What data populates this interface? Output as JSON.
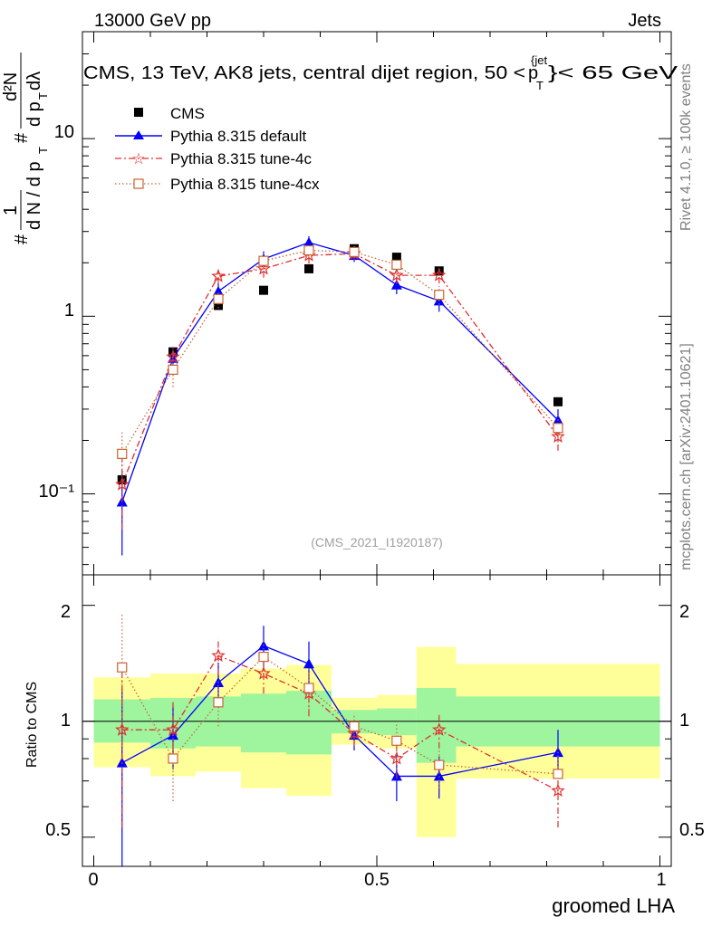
{
  "header": {
    "left": "13000 GeV pp",
    "right": "Jets",
    "side_label": "Rivet 4.1.0, ≥ 100k events",
    "side_url": "mcplots.cern.ch [arXiv:2401.10621]"
  },
  "main_title": {
    "prefix": "CMS, 13 TeV, AK8 jets, central dijet region, 50 <",
    "pt_p": "p",
    "pt_sup": "{jet",
    "pt_sub": "T",
    "suffix": "}< 65 GeV"
  },
  "y_label_upper": {
    "hash": "#",
    "one": "1",
    "dn": "d N / d p",
    "dn_sub": "T",
    "hash2": "#",
    "num": "d²N",
    "den": "d p",
    "den_sub": "T",
    "den2": " dλ"
  },
  "watermark": "(CMS_2021_I1920187)",
  "legend": [
    {
      "label": "CMS",
      "marker": "square",
      "color": "#000000"
    },
    {
      "label": "Pythia 8.315 default",
      "marker": "triangle",
      "color": "#0000ff"
    },
    {
      "label": "Pythia 8.315 tune-4c",
      "marker": "star",
      "color": "#e03030"
    },
    {
      "label": "Pythia 8.315 tune-4cx",
      "marker": "open-square",
      "color": "#c86432"
    }
  ],
  "chart_data": [
    {
      "type": "scatter",
      "yscale": "log",
      "xlim": [
        -0.02,
        1.02
      ],
      "ylim": [
        0.035,
        40
      ],
      "yticks": [
        {
          "value": 10,
          "label": "10"
        },
        {
          "value": 1,
          "label": "1"
        },
        {
          "value": 0.1,
          "label": "10⁻¹"
        }
      ],
      "x": [
        0.05,
        0.14,
        0.22,
        0.3,
        0.38,
        0.46,
        0.535,
        0.61,
        0.82
      ],
      "series": [
        {
          "name": "CMS",
          "values": [
            0.12,
            0.63,
            1.15,
            1.4,
            1.85,
            2.4,
            2.15,
            1.8,
            0.33
          ]
        },
        {
          "name": "Pythia 8.315 default",
          "values": [
            0.09,
            0.58,
            1.38,
            2.1,
            2.6,
            2.2,
            1.5,
            1.22,
            0.26
          ],
          "err": [
            0.045,
            0.09,
            0.15,
            0.22,
            0.22,
            0.18,
            0.17,
            0.16,
            0.04
          ]
        },
        {
          "name": "Pythia 8.315 tune-4c",
          "values": [
            0.113,
            0.59,
            1.68,
            1.85,
            2.2,
            2.25,
            1.7,
            1.7,
            0.21
          ],
          "err": [
            0.05,
            0.1,
            0.15,
            0.2,
            0.22,
            0.18,
            0.18,
            0.17,
            0.035
          ]
        },
        {
          "name": "Pythia 8.315 tune-4cx",
          "values": [
            0.168,
            0.5,
            1.25,
            2.05,
            2.35,
            2.3,
            1.95,
            1.32,
            0.235
          ],
          "err": [
            0.055,
            0.1,
            0.14,
            0.2,
            0.22,
            0.18,
            0.18,
            0.16,
            0.04
          ]
        }
      ]
    },
    {
      "type": "scatter",
      "yscale": "log",
      "ylabel": "Ratio to CMS",
      "xlabel": "groomed LHA",
      "xlim": [
        -0.02,
        1.02
      ],
      "ylim": [
        0.42,
        2.4
      ],
      "yticks": [
        {
          "value": 2,
          "label": "2"
        },
        {
          "value": 1,
          "label": "1"
        },
        {
          "value": 0.5,
          "label": "0.5"
        }
      ],
      "xticks": [
        {
          "value": 0,
          "label": "0"
        },
        {
          "value": 0.5,
          "label": "0.5"
        },
        {
          "value": 1,
          "label": "1"
        }
      ],
      "bands": [
        {
          "x0": 0.0,
          "x1": 0.1,
          "g_lo": 0.88,
          "g_hi": 1.14,
          "y_lo": 0.76,
          "y_hi": 1.3
        },
        {
          "x0": 0.1,
          "x1": 0.18,
          "g_lo": 0.85,
          "g_hi": 1.15,
          "y_lo": 0.72,
          "y_hi": 1.33
        },
        {
          "x0": 0.18,
          "x1": 0.26,
          "g_lo": 0.86,
          "g_hi": 1.16,
          "y_lo": 0.74,
          "y_hi": 1.33
        },
        {
          "x0": 0.26,
          "x1": 0.34,
          "g_lo": 0.83,
          "g_hi": 1.18,
          "y_lo": 0.67,
          "y_hi": 1.37
        },
        {
          "x0": 0.34,
          "x1": 0.42,
          "g_lo": 0.82,
          "g_hi": 1.2,
          "y_lo": 0.64,
          "y_hi": 1.4
        },
        {
          "x0": 0.42,
          "x1": 0.5,
          "g_lo": 0.93,
          "g_hi": 1.07,
          "y_lo": 0.87,
          "y_hi": 1.15
        },
        {
          "x0": 0.5,
          "x1": 0.57,
          "g_lo": 0.92,
          "g_hi": 1.08,
          "y_lo": 0.85,
          "y_hi": 1.17
        },
        {
          "x0": 0.57,
          "x1": 0.64,
          "g_lo": 0.78,
          "g_hi": 1.22,
          "y_lo": 0.5,
          "y_hi": 1.56
        },
        {
          "x0": 0.64,
          "x1": 1.0,
          "g_lo": 0.86,
          "g_hi": 1.16,
          "y_lo": 0.71,
          "y_hi": 1.41
        }
      ],
      "series": [
        {
          "name": "Pythia 8.315 default",
          "values": [
            0.78,
            0.92,
            1.26,
            1.57,
            1.41,
            0.92,
            0.72,
            0.72,
            0.83
          ],
          "err": [
            0.45,
            0.17,
            0.16,
            0.2,
            0.2,
            0.08,
            0.1,
            0.09,
            0.12
          ]
        },
        {
          "name": "Pythia 8.315 tune-4c",
          "values": [
            0.95,
            0.95,
            1.48,
            1.33,
            1.18,
            0.93,
            0.8,
            0.95,
            0.66
          ],
          "err": [
            0.42,
            0.17,
            0.16,
            0.15,
            0.15,
            0.07,
            0.09,
            0.1,
            0.13
          ]
        },
        {
          "name": "Pythia 8.315 tune-4cx",
          "values": [
            1.38,
            0.8,
            1.12,
            1.47,
            1.22,
            0.97,
            0.89,
            0.77,
            0.73
          ],
          "err": [
            0.52,
            0.18,
            0.15,
            0.15,
            0.15,
            0.07,
            0.09,
            0.1,
            0.12
          ]
        }
      ]
    }
  ]
}
